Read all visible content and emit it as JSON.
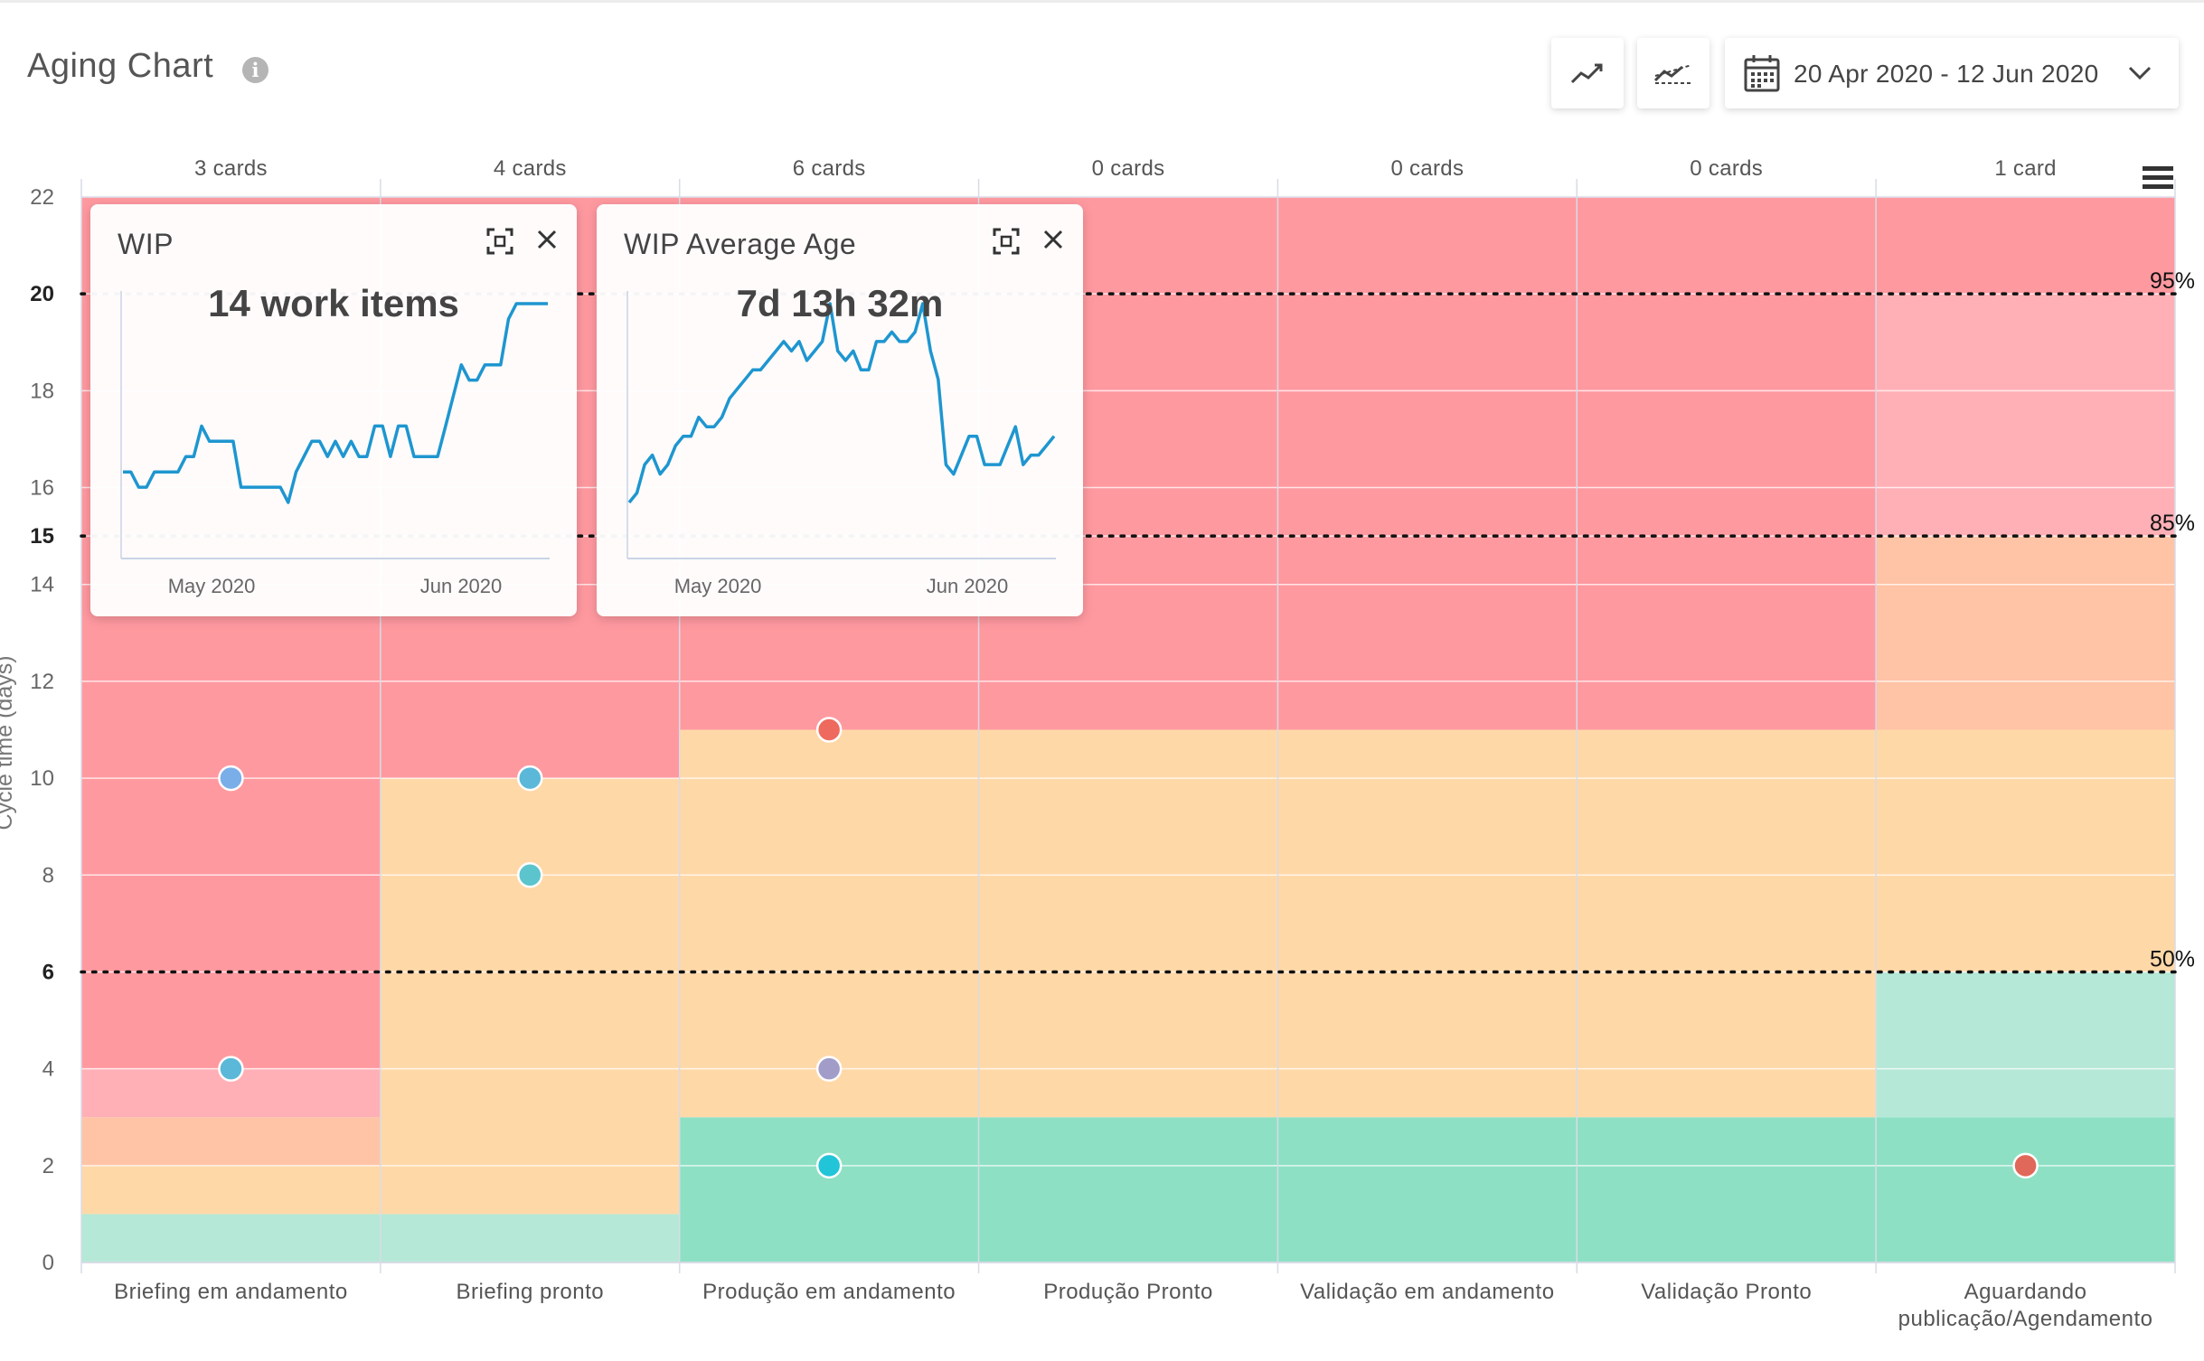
{
  "header": {
    "title": "Aging Chart",
    "date_range": "20 Apr 2020 - 12 Jun 2020"
  },
  "colors": {
    "red": "#ff99a0",
    "pink": "#ffb0b6",
    "salmon": "#ffc3a6",
    "orange": "#ffd8a8",
    "green_light": "#b5e8d6",
    "green": "#8ee0c4",
    "grid": "#ffffff",
    "axis": "#d8dce6",
    "spark": "#1e96d0"
  },
  "chart_data": {
    "type": "scatter",
    "ylabel": "Cycle time (days)",
    "ylim": [
      0,
      22
    ],
    "yticks": [
      0,
      2,
      4,
      6,
      8,
      10,
      12,
      14,
      15,
      16,
      18,
      20,
      22
    ],
    "bold_ticks": [
      6,
      15,
      20
    ],
    "categories": [
      "Briefing em andamento",
      "Briefing pronto",
      "Produção em andamento",
      "Produção Pronto",
      "Validação em andamento",
      "Validação Pronto",
      "Aguardando publicação/Agendamento"
    ],
    "category_label_lines": [
      [
        "Briefing em andamento"
      ],
      [
        "Briefing pronto"
      ],
      [
        "Produção em andamento"
      ],
      [
        "Produção Pronto"
      ],
      [
        "Validação em andamento"
      ],
      [
        "Validação Pronto"
      ],
      [
        "Aguardando",
        "publicação/Agendamento"
      ]
    ],
    "card_counts": [
      "3 cards",
      "4 cards",
      "6 cards",
      "0 cards",
      "0 cards",
      "0 cards",
      "1 card"
    ],
    "percentile_lines": [
      {
        "label": "95%",
        "value": 20
      },
      {
        "label": "85%",
        "value": 15
      },
      {
        "label": "50%",
        "value": 6
      }
    ],
    "zones": [
      [
        {
          "from": 0,
          "to": 1,
          "c": "green_light"
        },
        {
          "from": 1,
          "to": 2,
          "c": "orange"
        },
        {
          "from": 2,
          "to": 3,
          "c": "salmon"
        },
        {
          "from": 3,
          "to": 4,
          "c": "pink"
        },
        {
          "from": 4,
          "to": 22,
          "c": "red"
        }
      ],
      [
        {
          "from": 0,
          "to": 1,
          "c": "green_light"
        },
        {
          "from": 1,
          "to": 10,
          "c": "orange"
        },
        {
          "from": 10,
          "to": 22,
          "c": "red"
        }
      ],
      [
        {
          "from": 0,
          "to": 3,
          "c": "green"
        },
        {
          "from": 3,
          "to": 11,
          "c": "orange"
        },
        {
          "from": 11,
          "to": 22,
          "c": "red"
        }
      ],
      [
        {
          "from": 0,
          "to": 3,
          "c": "green"
        },
        {
          "from": 3,
          "to": 11,
          "c": "orange"
        },
        {
          "from": 11,
          "to": 22,
          "c": "red"
        }
      ],
      [
        {
          "from": 0,
          "to": 3,
          "c": "green"
        },
        {
          "from": 3,
          "to": 11,
          "c": "orange"
        },
        {
          "from": 11,
          "to": 22,
          "c": "red"
        }
      ],
      [
        {
          "from": 0,
          "to": 3,
          "c": "green"
        },
        {
          "from": 3,
          "to": 11,
          "c": "orange"
        },
        {
          "from": 11,
          "to": 22,
          "c": "red"
        }
      ],
      [
        {
          "from": 0,
          "to": 3,
          "c": "green"
        },
        {
          "from": 3,
          "to": 6,
          "c": "green_light"
        },
        {
          "from": 6,
          "to": 11,
          "c": "orange"
        },
        {
          "from": 11,
          "to": 15,
          "c": "salmon"
        },
        {
          "from": 15,
          "to": 20,
          "c": "pink"
        },
        {
          "from": 20,
          "to": 22,
          "c": "red"
        }
      ]
    ],
    "points": [
      {
        "col": 0,
        "y": 10,
        "color": "#7aaee8"
      },
      {
        "col": 0,
        "y": 4,
        "color": "#5bb8d8"
      },
      {
        "col": 1,
        "y": 10,
        "color": "#5bb8d8"
      },
      {
        "col": 1,
        "y": 8,
        "color": "#5cc4cc"
      },
      {
        "col": 2,
        "y": 11,
        "color": "#ee6a5e"
      },
      {
        "col": 2,
        "y": 4,
        "color": "#a19cc8"
      },
      {
        "col": 2,
        "y": 2,
        "color": "#22c4d8"
      },
      {
        "col": 6,
        "y": 2,
        "color": "#e0685a"
      }
    ]
  },
  "cards": [
    {
      "title": "WIP",
      "value": "14 work items",
      "x_labels": [
        "May 2020",
        "Jun 2020"
      ],
      "series": [
        8,
        8,
        7,
        7,
        8,
        8,
        8,
        8,
        9,
        9,
        11,
        10,
        10,
        10,
        10,
        7,
        7,
        7,
        7,
        7,
        7,
        6,
        8,
        9,
        10,
        10,
        9,
        10,
        9,
        10,
        9,
        9,
        11,
        11,
        9,
        11,
        11,
        9,
        9,
        9,
        9,
        11,
        13,
        15,
        14,
        14,
        15,
        15,
        15,
        18,
        19,
        19,
        19,
        19,
        19
      ]
    },
    {
      "title": "WIP Average Age",
      "value": "7d 13h 32m",
      "x_labels": [
        "May 2020",
        "Jun 2020"
      ],
      "series": [
        2,
        2.5,
        4,
        4.5,
        3.5,
        4,
        5,
        5.5,
        5.5,
        6.5,
        6,
        6,
        6.5,
        7.5,
        8,
        8.5,
        9,
        9,
        9.5,
        10,
        10.5,
        10,
        10.5,
        9.5,
        10,
        10.5,
        12.5,
        10,
        9.5,
        10,
        9,
        9,
        10.5,
        10.5,
        11,
        10.5,
        10.5,
        11,
        12.5,
        10,
        8.5,
        4,
        3.5,
        4.5,
        5.5,
        5.5,
        4,
        4,
        4,
        5,
        6,
        4,
        4.5,
        4.5,
        5,
        5.5
      ]
    }
  ]
}
